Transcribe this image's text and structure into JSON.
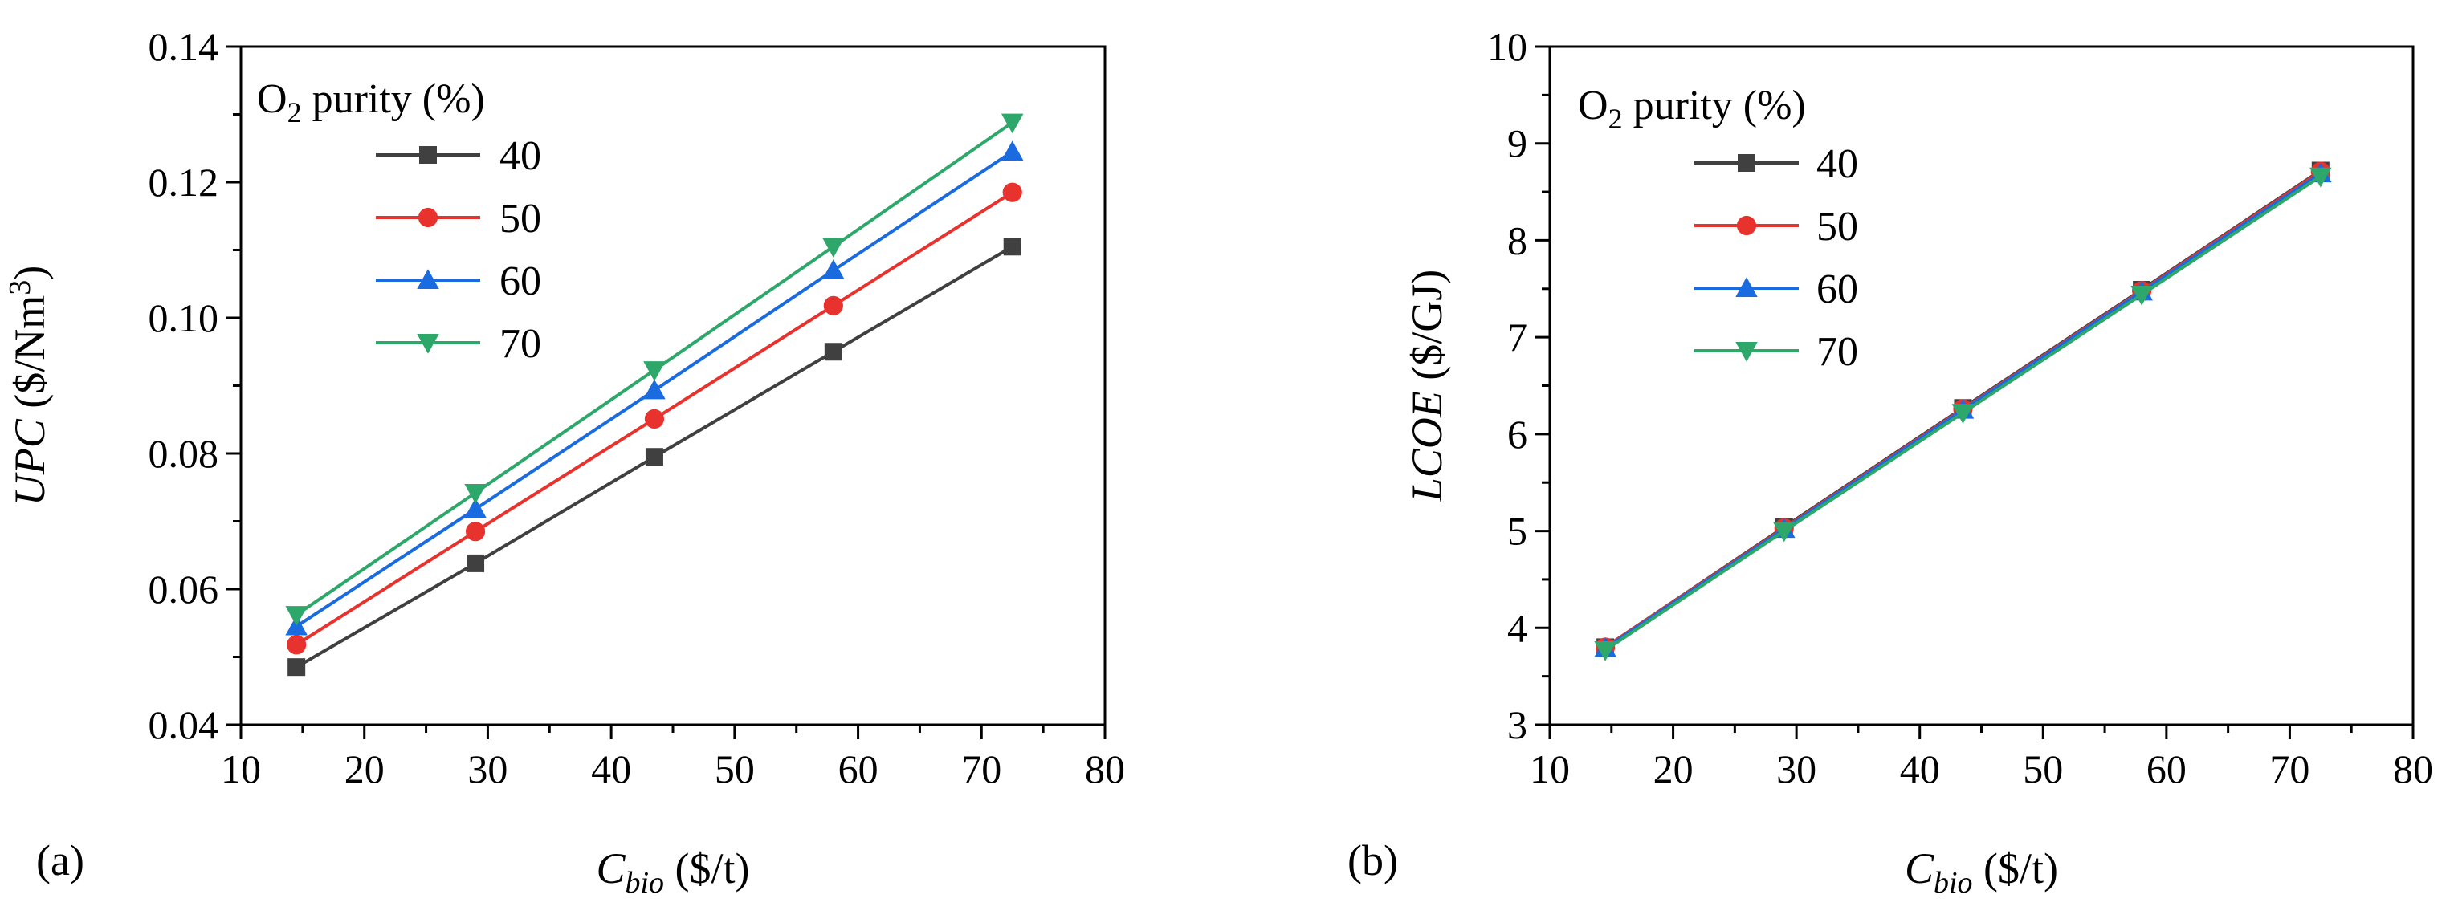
{
  "chart_data": [
    {
      "type": "line",
      "panel_label": "(a)",
      "xlabel": {
        "main": "C",
        "sub": "bio",
        "unit": " ($/t)"
      },
      "ylabel": {
        "main": "UPC",
        "unit": " ($/Nm",
        "sup": "3",
        "close": ")"
      },
      "xlim": [
        10,
        80
      ],
      "ylim": [
        0.04,
        0.14
      ],
      "xticks": [
        10,
        20,
        30,
        40,
        50,
        60,
        70,
        80
      ],
      "xtick_labels": [
        "10",
        "20",
        "30",
        "40",
        "50",
        "60",
        "70",
        "80"
      ],
      "yticks": [
        0.04,
        0.06,
        0.08,
        0.1,
        0.12,
        0.14
      ],
      "ytick_labels": [
        "0.04",
        "0.06",
        "0.08",
        "0.10",
        "0.12",
        "0.14"
      ],
      "legend": {
        "title_main": "O",
        "title_sub": "2",
        "title_rest": " purity (%)",
        "placement": "top-left"
      },
      "x": [
        14.5,
        29,
        43.5,
        58,
        72.5
      ],
      "series": [
        {
          "name": "40",
          "color": "#404040",
          "marker": "square",
          "values": [
            0.0485,
            0.0638,
            0.0795,
            0.095,
            0.1105
          ]
        },
        {
          "name": "50",
          "color": "#e8322e",
          "marker": "circle",
          "values": [
            0.0518,
            0.0685,
            0.0851,
            0.1018,
            0.1185
          ]
        },
        {
          "name": "60",
          "color": "#1a6ae0",
          "marker": "triangle",
          "values": [
            0.0545,
            0.0718,
            0.0893,
            0.107,
            0.1245
          ]
        },
        {
          "name": "70",
          "color": "#2ea76a",
          "marker": "triangle-down",
          "values": [
            0.0562,
            0.0742,
            0.0923,
            0.1105,
            0.1288
          ]
        }
      ]
    },
    {
      "type": "line",
      "panel_label": "(b)",
      "xlabel": {
        "main": "C",
        "sub": "bio",
        "unit": " ($/t)"
      },
      "ylabel": {
        "main": "LCOE",
        "unit": " ($/GJ)",
        "sup": "",
        "close": ""
      },
      "xlim": [
        10,
        80
      ],
      "ylim": [
        3,
        10
      ],
      "xticks": [
        10,
        20,
        30,
        40,
        50,
        60,
        70,
        80
      ],
      "xtick_labels": [
        "10",
        "20",
        "30",
        "40",
        "50",
        "60",
        "70",
        "80"
      ],
      "yticks": [
        3,
        4,
        5,
        6,
        7,
        8,
        9,
        10
      ],
      "ytick_labels": [
        "3",
        "4",
        "5",
        "6",
        "7",
        "8",
        "9",
        "10"
      ],
      "legend": {
        "title_main": "O",
        "title_sub": "2",
        "title_rest": " purity (%)",
        "placement": "top-left"
      },
      "x": [
        14.5,
        29,
        43.5,
        58,
        72.5
      ],
      "series": [
        {
          "name": "40",
          "color": "#404040",
          "marker": "square",
          "values": [
            3.8,
            5.04,
            6.27,
            7.49,
            8.72
          ]
        },
        {
          "name": "50",
          "color": "#e8322e",
          "marker": "circle",
          "values": [
            3.8,
            5.03,
            6.26,
            7.48,
            8.71
          ]
        },
        {
          "name": "60",
          "color": "#1a6ae0",
          "marker": "triangle",
          "values": [
            3.79,
            5.02,
            6.25,
            7.47,
            8.69
          ]
        },
        {
          "name": "70",
          "color": "#2ea76a",
          "marker": "triangle-down",
          "values": [
            3.77,
            5.0,
            6.22,
            7.44,
            8.66
          ]
        }
      ]
    }
  ]
}
